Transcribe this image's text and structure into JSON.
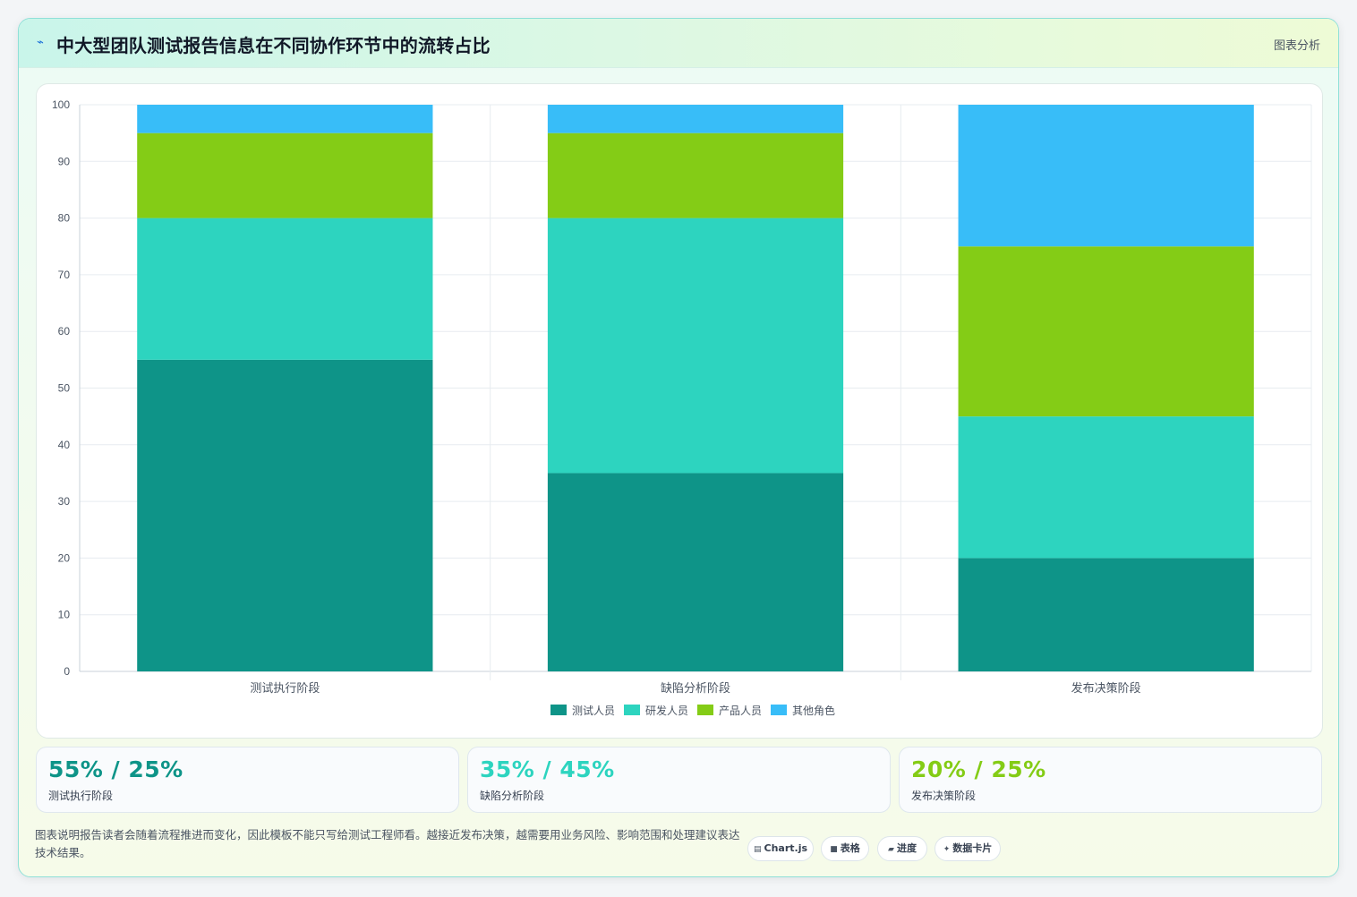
{
  "header": {
    "title": "中大型团队测试报告信息在不同协作环节中的流转占比",
    "icon": "sparkline-icon",
    "tag": "图表分析"
  },
  "chart_data": {
    "type": "bar",
    "stacked": true,
    "categories": [
      "测试执行阶段",
      "缺陷分析阶段",
      "发布决策阶段"
    ],
    "series": [
      {
        "name": "测试人员",
        "values": [
          55,
          35,
          20
        ],
        "color": "#0e9488"
      },
      {
        "name": "研发人员",
        "values": [
          25,
          45,
          25
        ],
        "color": "#2dd4bf"
      },
      {
        "name": "产品人员",
        "values": [
          15,
          15,
          30
        ],
        "color": "#84cc16"
      },
      {
        "name": "其他角色",
        "values": [
          5,
          5,
          25
        ],
        "color": "#38bdf8"
      }
    ],
    "ylim": [
      0,
      100
    ],
    "yticks": [
      "0",
      "10",
      "20",
      "30",
      "40",
      "50",
      "60",
      "70",
      "80",
      "90",
      "100"
    ],
    "grid": true,
    "legend": "bottom"
  },
  "stats": [
    {
      "value": "55% / 25%",
      "label": "测试执行阶段",
      "color": "#0e9488"
    },
    {
      "value": "35% / 45%",
      "label": "缺陷分析阶段",
      "color": "#2dd4bf"
    },
    {
      "value": "20% / 25%",
      "label": "发布决策阶段",
      "color": "#84cc16"
    }
  ],
  "footnote": "图表说明报告读者会随着流程推进而变化，因此模板不能只写给测试工程师看。越接近发布决策，越需要用业务风险、影响范围和处理建议表达技术结果。",
  "chips": [
    {
      "icon": "chart-icon",
      "glyph": "▤",
      "label": "Chart.js"
    },
    {
      "icon": "table-icon",
      "glyph": "■",
      "label": "表格"
    },
    {
      "icon": "progress-icon",
      "glyph": "▰",
      "label": "进度"
    },
    {
      "icon": "sparkle-icon",
      "glyph": "✦",
      "label": "数据卡片"
    }
  ]
}
